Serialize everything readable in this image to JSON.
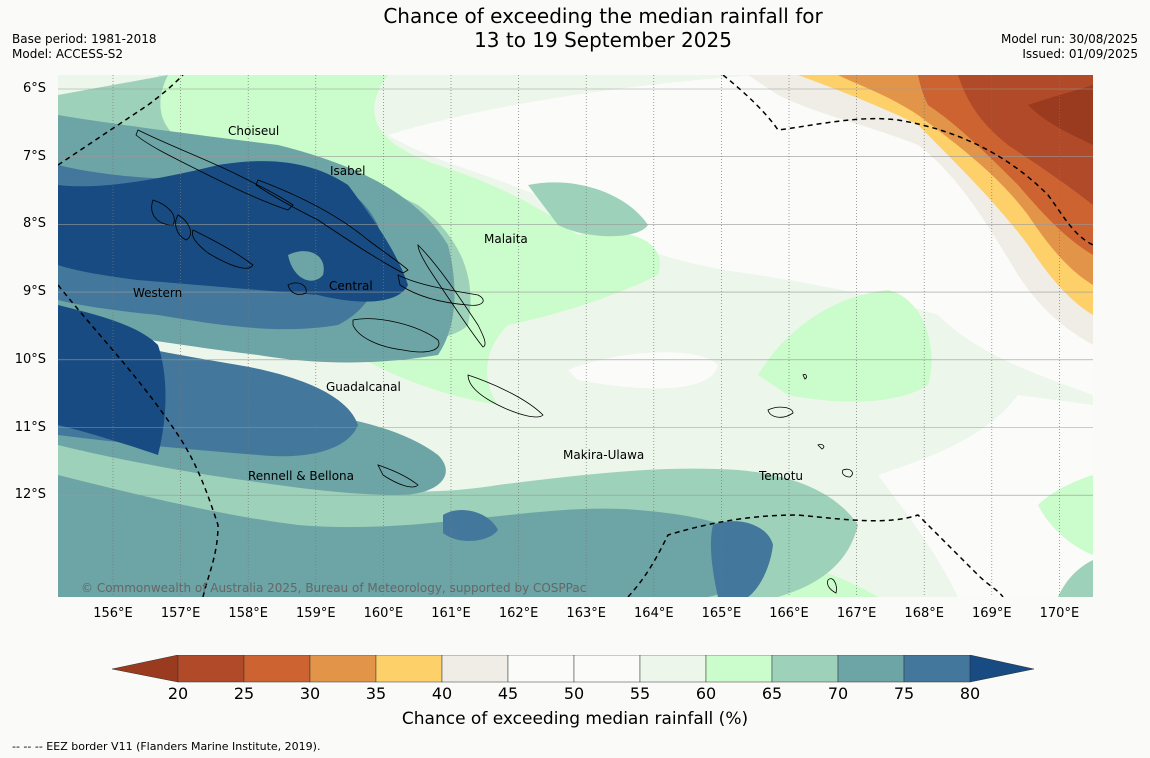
{
  "header": {
    "title_line1": "Chance of exceeding the median rainfall for",
    "title_line2": "13 to 19 September 2025",
    "base_period": "Base period: 1981-2018",
    "model": "Model: ACCESS-S2",
    "model_run": "Model run: 30/08/2025",
    "issued": "Issued: 01/09/2025"
  },
  "map": {
    "lat_labels": [
      "6°S",
      "7°S",
      "8°S",
      "9°S",
      "10°S",
      "11°S",
      "12°S"
    ],
    "lon_labels": [
      "156°E",
      "157°E",
      "158°E",
      "159°E",
      "160°E",
      "161°E",
      "162°E",
      "163°E",
      "164°E",
      "165°E",
      "166°E",
      "167°E",
      "168°E",
      "169°E",
      "170°E"
    ],
    "places": [
      "Choiseul",
      "Isabel",
      "Malaita",
      "Western",
      "Central",
      "Guadalcanal",
      "Makira-Ulawa",
      "Temotu",
      "Rennell & Bellona"
    ],
    "copyright": "© Commonwealth of Australia 2025, Bureau of Meteorology, supported by COSPPac"
  },
  "colorbar": {
    "ticks": [
      "20",
      "25",
      "30",
      "35",
      "40",
      "45",
      "50",
      "55",
      "60",
      "65",
      "70",
      "75",
      "80"
    ],
    "colors": [
      "#9a3a1e",
      "#b04a28",
      "#cc6330",
      "#e29548",
      "#fed06a",
      "#f0ede6",
      "#fbfcfa",
      "#fbfcfa",
      "#ecf6ea",
      "#cbfccb",
      "#9dd1b9",
      "#6da4a5",
      "#43779c",
      "#174b81"
    ],
    "label": "Chance of exceeding median rainfall (%)"
  },
  "footnote": "--  --  -- EEZ border V11 (Flanders Marine Institute, 2019)."
}
